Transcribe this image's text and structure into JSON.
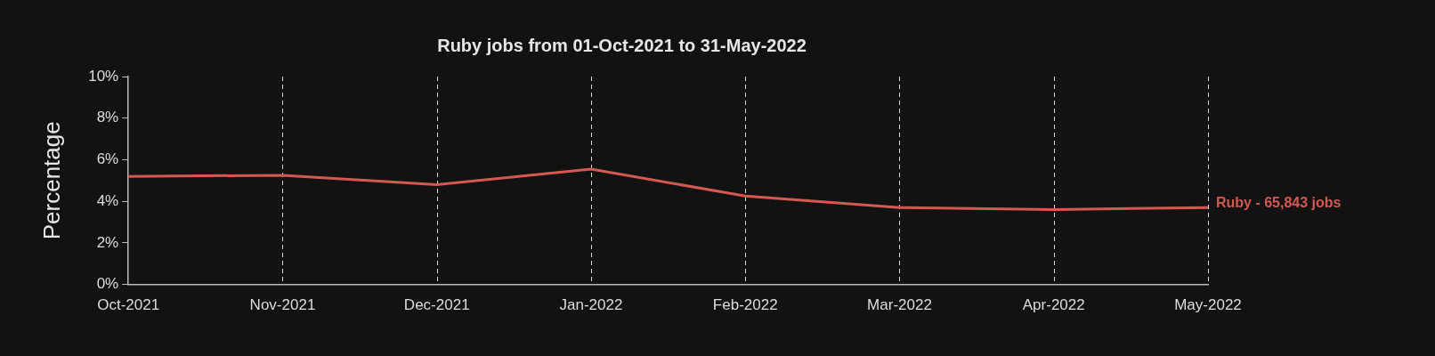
{
  "chart_data": {
    "type": "line",
    "title": "Ruby jobs from 01-Oct-2021 to 31-May-2022",
    "ylabel": "Percentage",
    "categories": [
      "Oct-2021",
      "Nov-2021",
      "Dec-2021",
      "Jan-2022",
      "Feb-2022",
      "Mar-2022",
      "Apr-2022",
      "May-2022"
    ],
    "series": [
      {
        "name": "Ruby - 65,843 jobs",
        "color": "#d35a52",
        "values": [
          5.2,
          5.25,
          4.8,
          5.55,
          4.25,
          3.7,
          3.6,
          3.7
        ]
      }
    ],
    "ylim": [
      0,
      10
    ],
    "yticks": [
      {
        "value": 0,
        "label": "0%"
      },
      {
        "value": 2,
        "label": "2%"
      },
      {
        "value": 4,
        "label": "4%"
      },
      {
        "value": 6,
        "label": "6%"
      },
      {
        "value": 8,
        "label": "8%"
      },
      {
        "value": 10,
        "label": "10%"
      }
    ],
    "grid": "x",
    "legend": false,
    "marker": "none",
    "line_style": "solid"
  }
}
